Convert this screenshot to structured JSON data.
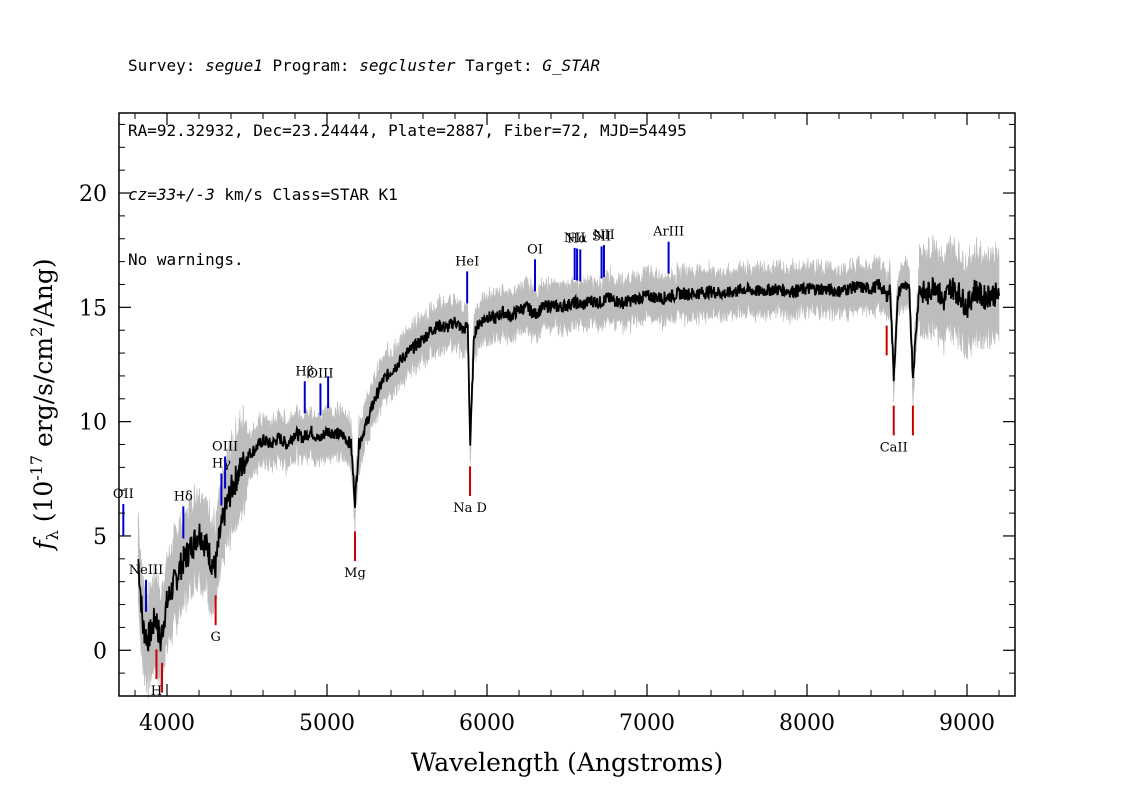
{
  "header": {
    "line1": {
      "survey_label": "Survey: ",
      "survey": "segue1",
      "program_label": " Program: ",
      "program": "segcluster",
      "target_label": " Target: ",
      "target": "G_STAR"
    },
    "line2": "RA=92.32932, Dec=23.24444, Plate=2887, Fiber=72, MJD=54495",
    "line3": {
      "cz": "cz=33+/-3",
      "rest": " km/s Class=STAR K1"
    },
    "line4": "No warnings."
  },
  "colors": {
    "flux": "#000000",
    "error_band": "#bdbdbd",
    "emission_lines": "#0000cc",
    "absorption_lines": "#cc0000"
  },
  "chart_data": {
    "type": "line",
    "xlabel": "Wavelength (Angstroms)",
    "ylabel": "fλ (10^-17 erg/s/cm^2/Ang)",
    "xlim": [
      3700,
      9300
    ],
    "ylim": [
      -2,
      23.5
    ],
    "xticks": [
      4000,
      5000,
      6000,
      7000,
      8000,
      9000
    ],
    "yticks": [
      0,
      5,
      10,
      15,
      20
    ],
    "series": [
      {
        "x": [
          3820,
          3850,
          3880,
          3900,
          3930,
          3960,
          3990,
          4020,
          4050,
          4080,
          4110,
          4150,
          4200,
          4250,
          4300,
          4330,
          4360,
          4400,
          4450,
          4500,
          4550,
          4600,
          4650,
          4700,
          4750,
          4800,
          4850,
          4900,
          4950,
          5000,
          5050,
          5100,
          5150,
          5175,
          5200,
          5250,
          5300,
          5350,
          5400,
          5450,
          5500,
          5550,
          5600,
          5650,
          5700,
          5750,
          5800,
          5850,
          5880,
          5895,
          5920,
          5950,
          6000,
          6050,
          6100,
          6150,
          6200,
          6250,
          6300,
          6350,
          6400,
          6450,
          6500,
          6550,
          6600,
          6650,
          6700,
          6750,
          6800,
          6850,
          6900,
          6950,
          7000,
          7100,
          7200,
          7300,
          7400,
          7500,
          7600,
          7700,
          7800,
          7900,
          8000,
          8100,
          8200,
          8300,
          8400,
          8450,
          8498,
          8520,
          8542,
          8570,
          8600,
          8640,
          8662,
          8700,
          8750,
          8800,
          8850,
          8900,
          8950,
          9000,
          9050,
          9100,
          9150,
          9200
        ],
        "y": [
          4.0,
          1.0,
          0.5,
          0.8,
          1.5,
          0.3,
          1.8,
          2.5,
          3.0,
          3.6,
          4.0,
          4.5,
          5.2,
          4.5,
          3.5,
          5.0,
          6.0,
          7.0,
          7.8,
          8.5,
          8.8,
          9.2,
          9.0,
          9.3,
          9.0,
          9.5,
          9.3,
          9.6,
          9.2,
          9.6,
          9.5,
          9.4,
          9.0,
          6.5,
          9.0,
          10.0,
          11.0,
          11.8,
          12.2,
          12.6,
          13.0,
          13.3,
          13.6,
          14.0,
          14.2,
          14.1,
          14.4,
          14.0,
          14.2,
          9.0,
          13.9,
          14.3,
          14.6,
          14.5,
          14.8,
          14.6,
          14.9,
          15.0,
          14.7,
          15.0,
          15.1,
          15.0,
          15.1,
          15.2,
          15.1,
          15.3,
          15.2,
          15.4,
          15.3,
          15.2,
          15.3,
          15.4,
          15.5,
          15.4,
          15.6,
          15.6,
          15.7,
          15.6,
          15.8,
          15.7,
          15.8,
          15.7,
          15.8,
          15.8,
          15.7,
          15.9,
          15.8,
          16.0,
          15.5,
          15.8,
          12.0,
          15.6,
          16.0,
          15.7,
          12.0,
          15.8,
          15.5,
          16.1,
          15.2,
          15.9,
          15.6,
          15.0,
          15.8,
          15.4,
          15.6,
          15.5
        ]
      }
    ],
    "line_markers": [
      {
        "name": "OII",
        "x": 3727,
        "kind": "emission",
        "label": "OII"
      },
      {
        "name": "NeIII",
        "x": 3869,
        "kind": "emission",
        "label": "NeIII"
      },
      {
        "name": "Hδ",
        "x": 4102,
        "kind": "emission",
        "label": "Hδ"
      },
      {
        "name": "Hγ",
        "x": 4340,
        "kind": "emission",
        "label": "Hγ"
      },
      {
        "name": "OIII",
        "x": 4363,
        "kind": "emission",
        "label": "OIII"
      },
      {
        "name": "Hβ",
        "x": 4861,
        "kind": "emission",
        "label": "Hβ"
      },
      {
        "name": "OIII",
        "x": 4959,
        "kind": "emission",
        "label": "OIII"
      },
      {
        "name": "OIII",
        "x": 5007,
        "kind": "emission",
        "label": ""
      },
      {
        "name": "HeI",
        "x": 5876,
        "kind": "emission",
        "label": "HeI"
      },
      {
        "name": "OI",
        "x": 6300,
        "kind": "emission",
        "label": "OI"
      },
      {
        "name": "NII",
        "x": 6548,
        "kind": "emission",
        "label": "NII"
      },
      {
        "name": "Hα",
        "x": 6563,
        "kind": "emission",
        "label": "Hα"
      },
      {
        "name": "NII",
        "x": 6583,
        "kind": "emission",
        "label": ""
      },
      {
        "name": "SII",
        "x": 6716,
        "kind": "emission",
        "label": "SII"
      },
      {
        "name": "NII",
        "x": 6731,
        "kind": "emission",
        "label": "NII"
      },
      {
        "name": "ArIII",
        "x": 7135,
        "kind": "emission",
        "label": "ArIII"
      },
      {
        "name": "H",
        "x": 3934,
        "kind": "absorption",
        "label": "H"
      },
      {
        "name": "K",
        "x": 3969,
        "kind": "absorption",
        "label": ""
      },
      {
        "name": "G",
        "x": 4304,
        "kind": "absorption",
        "label": "G"
      },
      {
        "name": "Mg",
        "x": 5175,
        "kind": "absorption",
        "label": "Mg"
      },
      {
        "name": "Na D",
        "x": 5894,
        "kind": "absorption",
        "label": "Na D"
      },
      {
        "name": "CaII",
        "x": 8498,
        "kind": "absorption",
        "label": ""
      },
      {
        "name": "CaII",
        "x": 8542,
        "kind": "absorption",
        "label": "CaII"
      },
      {
        "name": "CaII",
        "x": 8662,
        "kind": "absorption",
        "label": ""
      }
    ]
  }
}
